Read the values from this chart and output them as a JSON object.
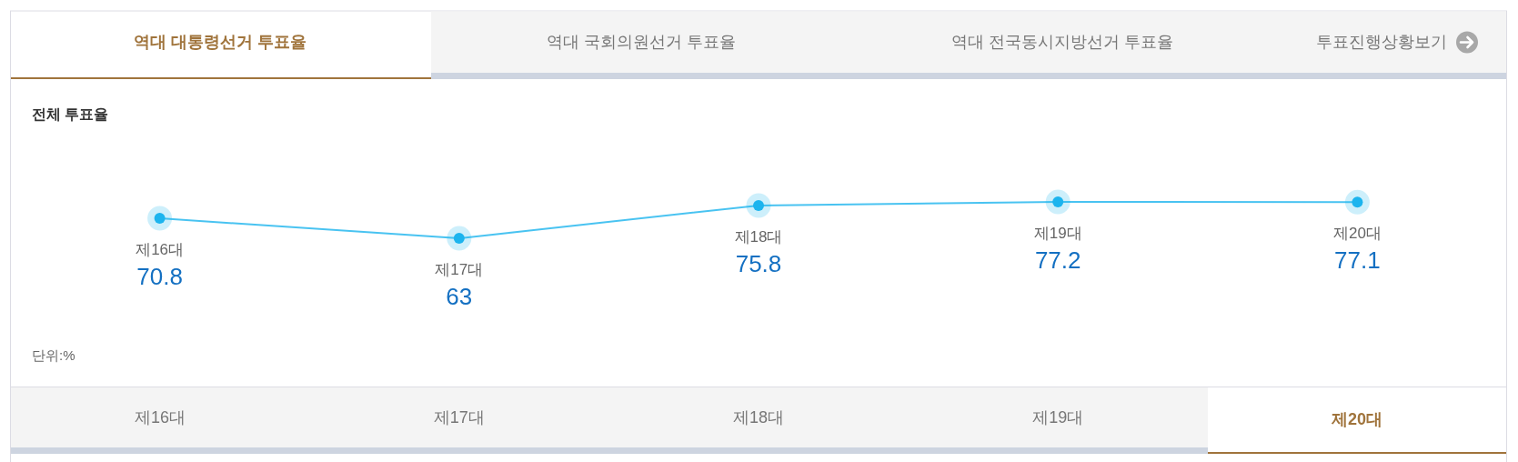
{
  "chart_data": {
    "type": "line",
    "title": "전체 투표율",
    "categories": [
      "제16대",
      "제17대",
      "제18대",
      "제19대",
      "제20대"
    ],
    "series": [
      {
        "color": "#1cb4ee",
        "values": [
          70.8,
          63,
          75.8,
          77.2,
          77.1
        ]
      }
    ],
    "data_labels": true,
    "marker": "circle",
    "line_style": "solid",
    "annotations": [
      "역대 대통령선거 투표율",
      "역대 국회의원선거 투표율",
      "역대 전국동시지방선거 투표율",
      "투표진행상황보기",
      "단위:%"
    ]
  }
}
